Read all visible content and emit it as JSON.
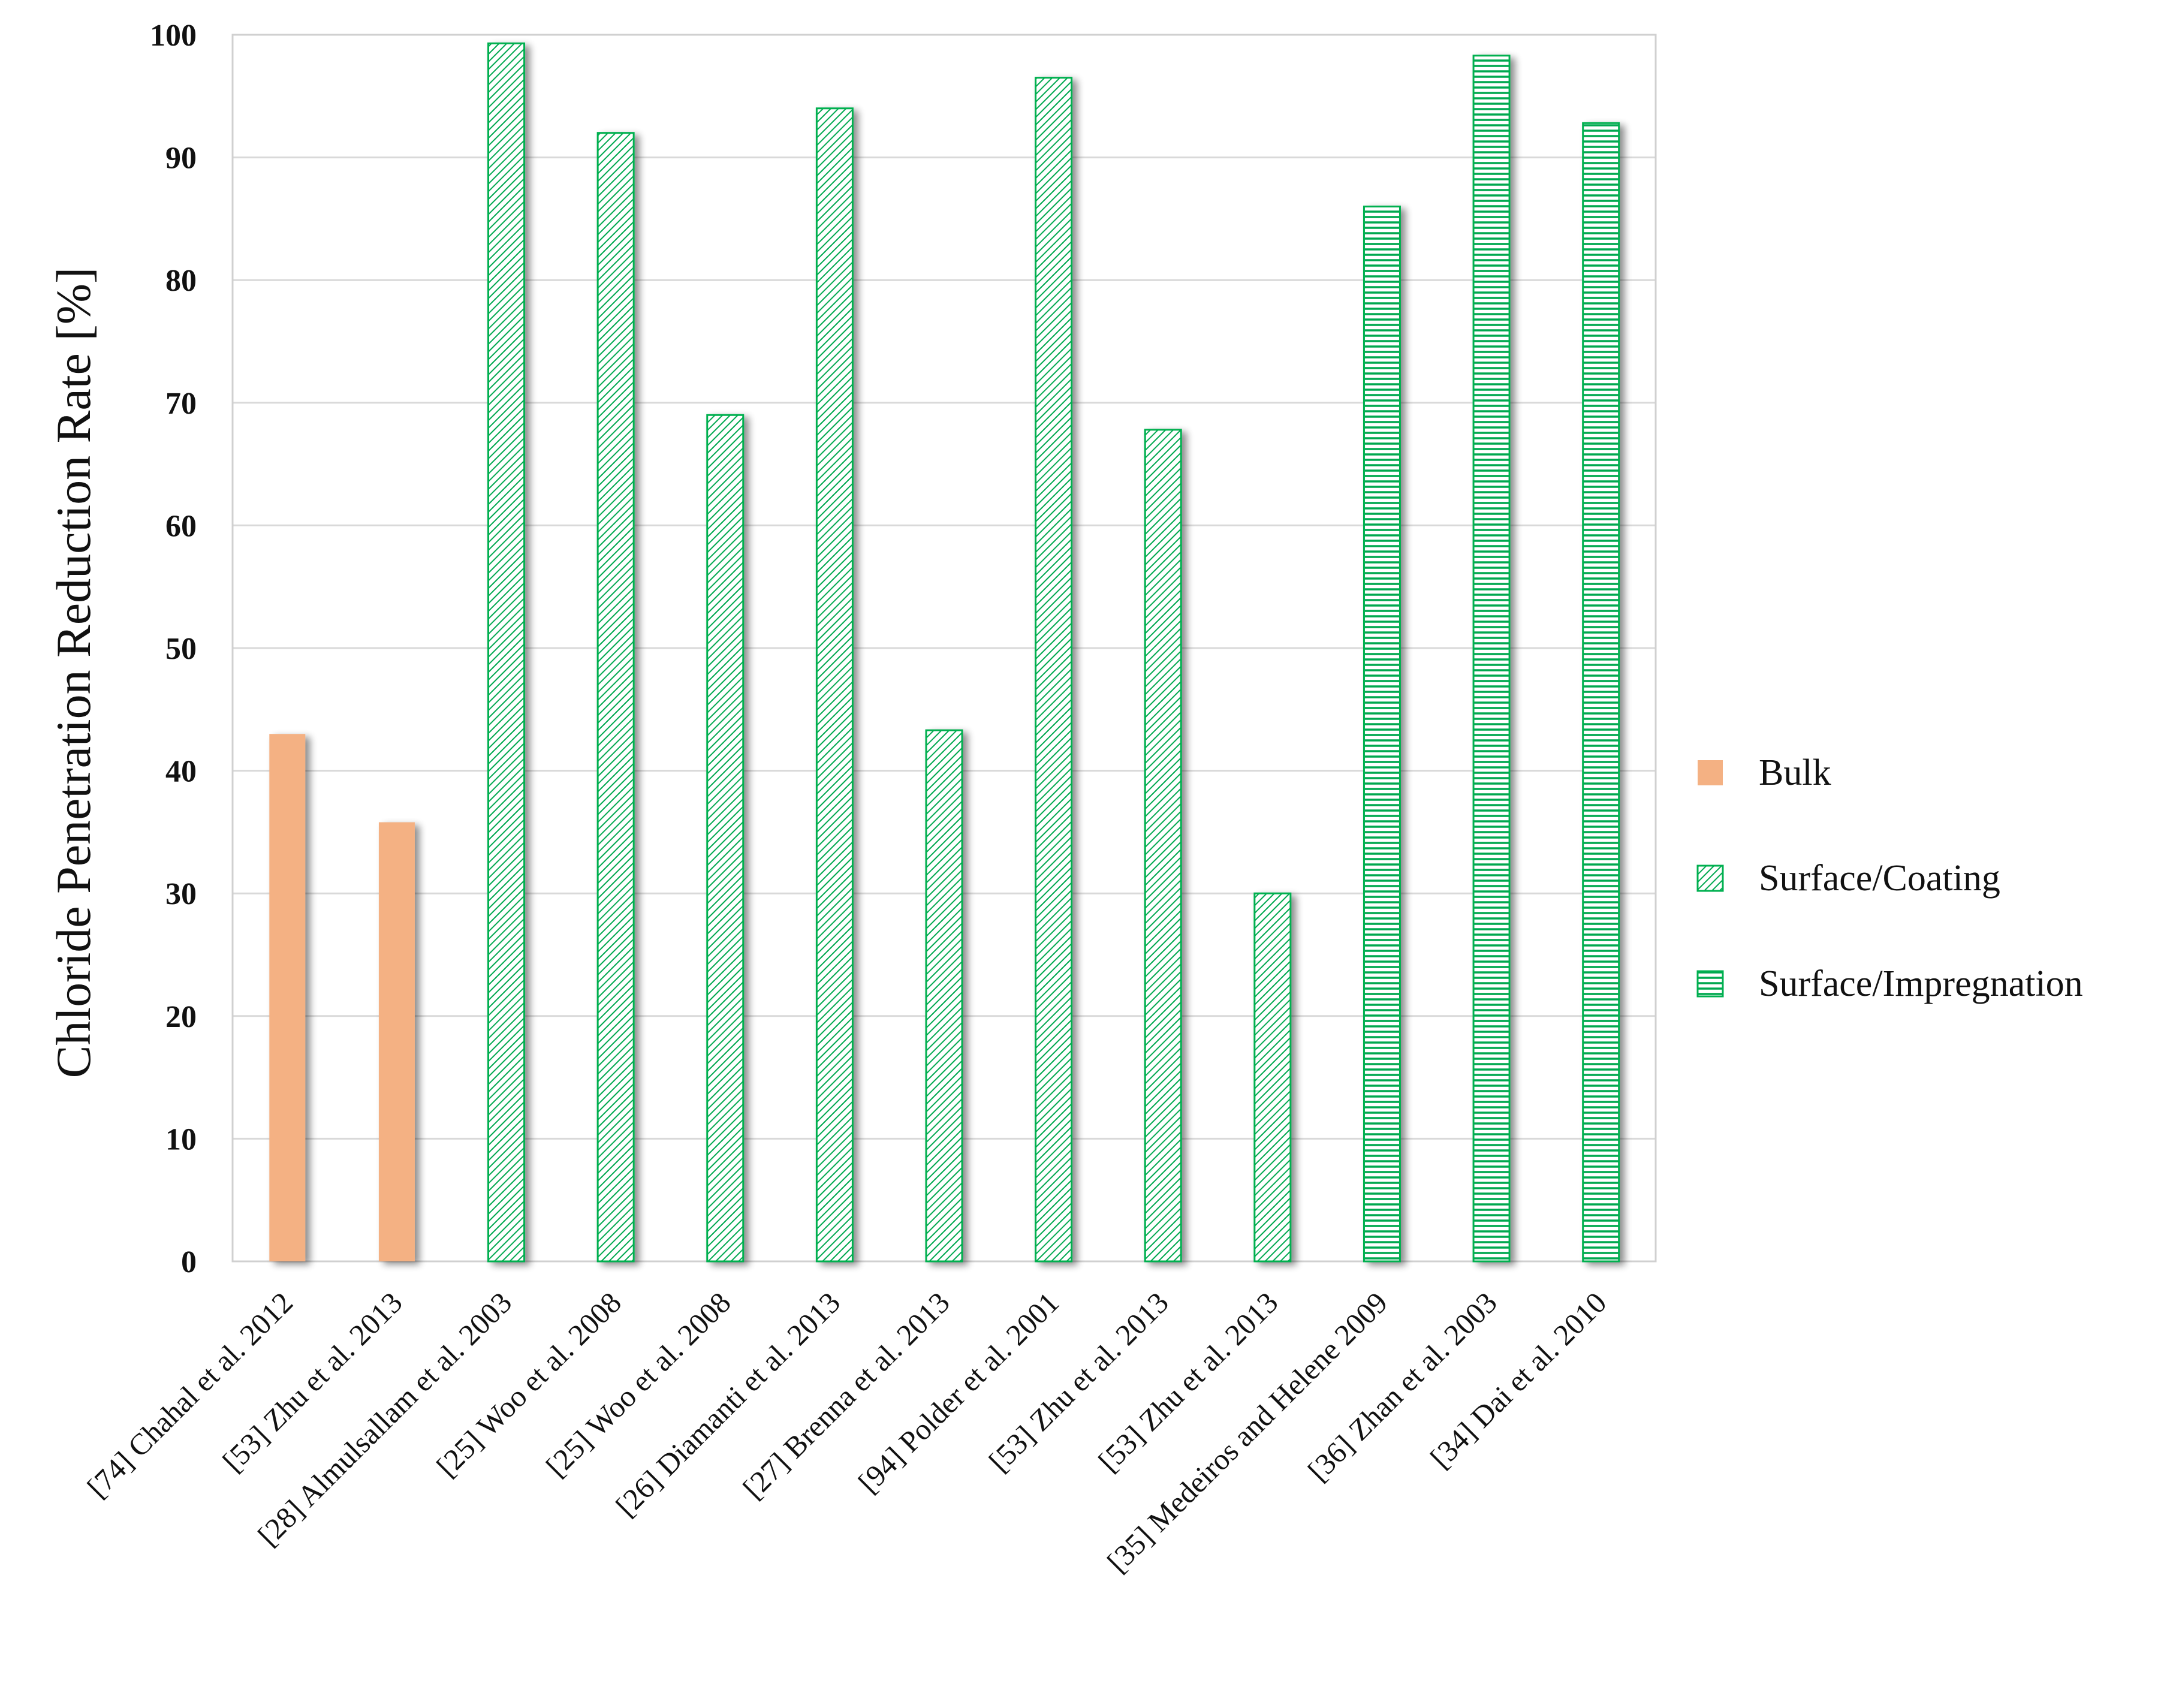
{
  "chart_data": {
    "type": "bar",
    "title": "",
    "xlabel": "",
    "ylabel": "Chloride Penetration Reduction Rate [%]",
    "ylim": [
      0,
      100
    ],
    "yticks": [
      "0",
      "10",
      "20",
      "30",
      "40",
      "50",
      "60",
      "70",
      "80",
      "90",
      "100"
    ],
    "grid": "horizontal",
    "legend_position": "right",
    "categories": [
      "[74] Chahal et al. 2012",
      "[53] Zhu et al. 2013",
      "[28] Almulsallam et al. 2003",
      "[25] Woo et al. 2008",
      "[25] Woo et al. 2008",
      "[26] Diamanti et al. 2013",
      "[27] Brenna et al. 2013",
      "[94] Polder et al. 2001",
      "[53] Zhu et al. 2013",
      "[53] Zhu et al. 2013",
      "[35] Medeiros and Helene 2009",
      "[36] Zhan et al. 2003",
      "[34] Dai et al. 2010"
    ],
    "values": [
      43,
      35.8,
      99.3,
      92,
      69,
      94,
      43.3,
      96.5,
      67.8,
      30,
      86,
      98.3,
      92.8
    ],
    "groups": [
      "Bulk",
      "Bulk",
      "Surface/Coating",
      "Surface/Coating",
      "Surface/Coating",
      "Surface/Coating",
      "Surface/Coating",
      "Surface/Coating",
      "Surface/Coating",
      "Surface/Coating",
      "Surface/Impregnation",
      "Surface/Impregnation",
      "Surface/Impregnation"
    ],
    "series": [
      {
        "name": "Bulk",
        "color": "#f4b183",
        "fill": "solid"
      },
      {
        "name": "Surface/Coating",
        "color": "#00b050",
        "fill": "diagonal-hatch"
      },
      {
        "name": "Surface/Impregnation",
        "color": "#00b050",
        "fill": "horizontal-hatch"
      }
    ]
  }
}
